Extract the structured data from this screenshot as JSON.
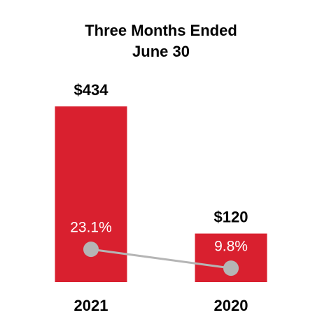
{
  "chart_data": {
    "type": "bar",
    "title": [
      "Three Months Ended",
      "June 30"
    ],
    "categories": [
      "2021",
      "2020"
    ],
    "values": [
      434,
      120
    ],
    "value_labels": [
      "$434",
      "$120"
    ],
    "color": "#d9202f",
    "line": {
      "values": [
        23.1,
        9.8
      ],
      "value_labels": [
        "23.1%",
        "9.8%"
      ],
      "color": "#b5b5b5"
    }
  }
}
